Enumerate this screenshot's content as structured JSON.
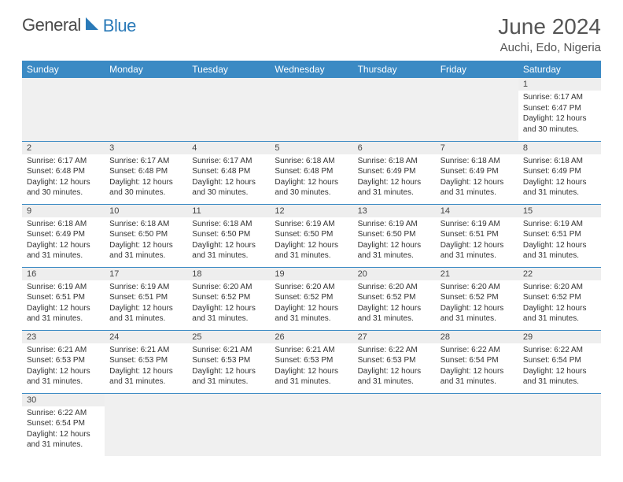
{
  "brand": {
    "part1": "General",
    "part2": "Blue"
  },
  "title": "June 2024",
  "location": "Auchi, Edo, Nigeria",
  "colors": {
    "header_bg": "#3b8ac4",
    "header_text": "#ffffff",
    "daynum_bg": "#eeeeee",
    "row_divider": "#3b8ac4",
    "text": "#333333",
    "title_text": "#555555",
    "logo_gray": "#4a4a4a",
    "logo_blue": "#2a7ab8",
    "background": "#ffffff"
  },
  "typography": {
    "title_fontsize": 28,
    "location_fontsize": 15,
    "dayheader_fontsize": 12,
    "daynum_fontsize": 11,
    "body_fontsize": 10
  },
  "weekdays": [
    "Sunday",
    "Monday",
    "Tuesday",
    "Wednesday",
    "Thursday",
    "Friday",
    "Saturday"
  ],
  "layout": {
    "first_day_col": 6,
    "days_in_month": 30
  },
  "days": [
    {
      "n": 1,
      "sunrise": "6:17 AM",
      "sunset": "6:47 PM",
      "daylight": "12 hours and 30 minutes."
    },
    {
      "n": 2,
      "sunrise": "6:17 AM",
      "sunset": "6:48 PM",
      "daylight": "12 hours and 30 minutes."
    },
    {
      "n": 3,
      "sunrise": "6:17 AM",
      "sunset": "6:48 PM",
      "daylight": "12 hours and 30 minutes."
    },
    {
      "n": 4,
      "sunrise": "6:17 AM",
      "sunset": "6:48 PM",
      "daylight": "12 hours and 30 minutes."
    },
    {
      "n": 5,
      "sunrise": "6:18 AM",
      "sunset": "6:48 PM",
      "daylight": "12 hours and 30 minutes."
    },
    {
      "n": 6,
      "sunrise": "6:18 AM",
      "sunset": "6:49 PM",
      "daylight": "12 hours and 31 minutes."
    },
    {
      "n": 7,
      "sunrise": "6:18 AM",
      "sunset": "6:49 PM",
      "daylight": "12 hours and 31 minutes."
    },
    {
      "n": 8,
      "sunrise": "6:18 AM",
      "sunset": "6:49 PM",
      "daylight": "12 hours and 31 minutes."
    },
    {
      "n": 9,
      "sunrise": "6:18 AM",
      "sunset": "6:49 PM",
      "daylight": "12 hours and 31 minutes."
    },
    {
      "n": 10,
      "sunrise": "6:18 AM",
      "sunset": "6:50 PM",
      "daylight": "12 hours and 31 minutes."
    },
    {
      "n": 11,
      "sunrise": "6:18 AM",
      "sunset": "6:50 PM",
      "daylight": "12 hours and 31 minutes."
    },
    {
      "n": 12,
      "sunrise": "6:19 AM",
      "sunset": "6:50 PM",
      "daylight": "12 hours and 31 minutes."
    },
    {
      "n": 13,
      "sunrise": "6:19 AM",
      "sunset": "6:50 PM",
      "daylight": "12 hours and 31 minutes."
    },
    {
      "n": 14,
      "sunrise": "6:19 AM",
      "sunset": "6:51 PM",
      "daylight": "12 hours and 31 minutes."
    },
    {
      "n": 15,
      "sunrise": "6:19 AM",
      "sunset": "6:51 PM",
      "daylight": "12 hours and 31 minutes."
    },
    {
      "n": 16,
      "sunrise": "6:19 AM",
      "sunset": "6:51 PM",
      "daylight": "12 hours and 31 minutes."
    },
    {
      "n": 17,
      "sunrise": "6:19 AM",
      "sunset": "6:51 PM",
      "daylight": "12 hours and 31 minutes."
    },
    {
      "n": 18,
      "sunrise": "6:20 AM",
      "sunset": "6:52 PM",
      "daylight": "12 hours and 31 minutes."
    },
    {
      "n": 19,
      "sunrise": "6:20 AM",
      "sunset": "6:52 PM",
      "daylight": "12 hours and 31 minutes."
    },
    {
      "n": 20,
      "sunrise": "6:20 AM",
      "sunset": "6:52 PM",
      "daylight": "12 hours and 31 minutes."
    },
    {
      "n": 21,
      "sunrise": "6:20 AM",
      "sunset": "6:52 PM",
      "daylight": "12 hours and 31 minutes."
    },
    {
      "n": 22,
      "sunrise": "6:20 AM",
      "sunset": "6:52 PM",
      "daylight": "12 hours and 31 minutes."
    },
    {
      "n": 23,
      "sunrise": "6:21 AM",
      "sunset": "6:53 PM",
      "daylight": "12 hours and 31 minutes."
    },
    {
      "n": 24,
      "sunrise": "6:21 AM",
      "sunset": "6:53 PM",
      "daylight": "12 hours and 31 minutes."
    },
    {
      "n": 25,
      "sunrise": "6:21 AM",
      "sunset": "6:53 PM",
      "daylight": "12 hours and 31 minutes."
    },
    {
      "n": 26,
      "sunrise": "6:21 AM",
      "sunset": "6:53 PM",
      "daylight": "12 hours and 31 minutes."
    },
    {
      "n": 27,
      "sunrise": "6:22 AM",
      "sunset": "6:53 PM",
      "daylight": "12 hours and 31 minutes."
    },
    {
      "n": 28,
      "sunrise": "6:22 AM",
      "sunset": "6:54 PM",
      "daylight": "12 hours and 31 minutes."
    },
    {
      "n": 29,
      "sunrise": "6:22 AM",
      "sunset": "6:54 PM",
      "daylight": "12 hours and 31 minutes."
    },
    {
      "n": 30,
      "sunrise": "6:22 AM",
      "sunset": "6:54 PM",
      "daylight": "12 hours and 31 minutes."
    }
  ],
  "labels": {
    "sunrise": "Sunrise:",
    "sunset": "Sunset:",
    "daylight": "Daylight:"
  }
}
